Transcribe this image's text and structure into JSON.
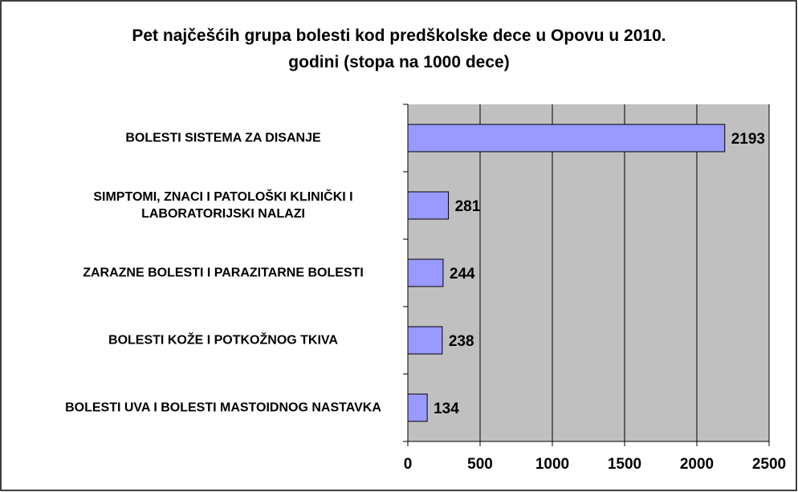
{
  "chart_data": {
    "type": "bar",
    "orientation": "horizontal",
    "title": "Pet najčešćih grupa bolesti kod predškolske dece u Opovu u 2010. godini (stopa na 1000 dece)",
    "categories": [
      "BOLESTI SISTEMA ZA DISANJE",
      "SIMPTOMI, ZNACI I PATOLOŠKI KLINIČKI I LABORATORIJSKI NALAZI",
      "ZARAZNE BOLESTI I PARAZITARNE BOLESTI",
      "BOLESTI KOŽE I POTKOŽNOG TKIVA",
      "BOLESTI UVA I BOLESTI MASTOIDNOG NASTAVKA"
    ],
    "values": [
      2193,
      281,
      244,
      238,
      134
    ],
    "color": "#9999ff",
    "xlim": [
      0,
      2500
    ],
    "xticks": [
      0,
      500,
      1000,
      1500,
      2000,
      2500
    ],
    "grid": true
  }
}
